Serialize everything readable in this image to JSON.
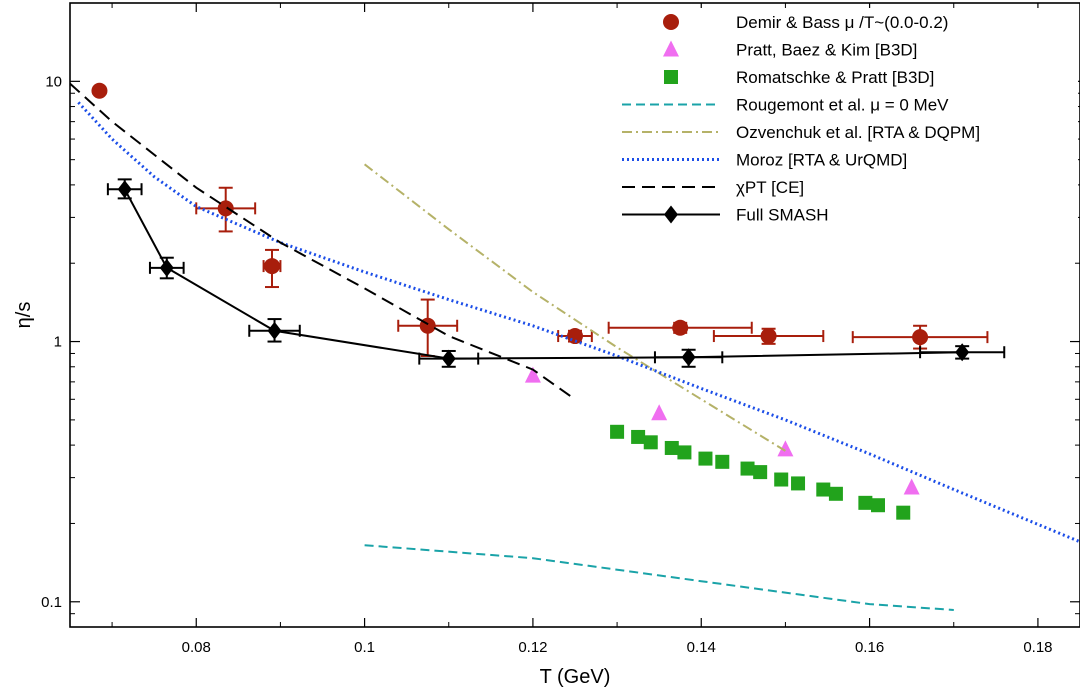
{
  "chart_data": {
    "type": "scatter",
    "xlabel": "T (GeV)",
    "ylabel": "η/s",
    "xlim": [
      0.065,
      0.185
    ],
    "ylim": [
      0.08,
      20
    ],
    "yscale": "log",
    "xticks": [
      "0.08",
      "0.1",
      "0.12",
      "0.14",
      "0.16",
      "0.18"
    ],
    "xtick_values": [
      0.08,
      0.1,
      0.12,
      0.14,
      0.16,
      0.18
    ],
    "yticks": [
      "0.1",
      "1",
      "10"
    ],
    "ytick_values": [
      0.1,
      1,
      10
    ],
    "legend_position": "top-right",
    "series": [
      {
        "name": "Demir & Bass  μ  /T~(0.0-0.2)",
        "kind": "markers",
        "marker": "circle",
        "color": "#a81e0c",
        "errorbars": true,
        "points": [
          {
            "x": 0.0685,
            "y": 9.2
          },
          {
            "x": 0.0835,
            "y": 3.25,
            "xerr": 0.0035,
            "ylo": 2.65,
            "yhi": 3.9
          },
          {
            "x": 0.089,
            "y": 1.95,
            "xerr": 0.001,
            "ylo": 1.62,
            "yhi": 2.25
          },
          {
            "x": 0.1075,
            "y": 1.15,
            "xerr": 0.0035,
            "ylo": 0.88,
            "yhi": 1.45
          },
          {
            "x": 0.125,
            "y": 1.05,
            "xerr": 0.002,
            "ylo": 1.0,
            "yhi": 1.1
          },
          {
            "x": 0.1375,
            "y": 1.13,
            "xerr": 0.0085,
            "ylo": 1.08,
            "yhi": 1.18
          },
          {
            "x": 0.148,
            "y": 1.05,
            "xerr": 0.0065,
            "ylo": 0.98,
            "yhi": 1.12
          },
          {
            "x": 0.166,
            "y": 1.04,
            "xerr": 0.008,
            "ylo": 0.94,
            "yhi": 1.15
          }
        ]
      },
      {
        "name": "Pratt, Baez & Kim [B3D]",
        "kind": "markers",
        "marker": "triangle",
        "color": "#f06ef0",
        "points": [
          {
            "x": 0.12,
            "y": 0.74
          },
          {
            "x": 0.135,
            "y": 0.53
          },
          {
            "x": 0.15,
            "y": 0.385
          },
          {
            "x": 0.165,
            "y": 0.275
          }
        ]
      },
      {
        "name": "Romatschke & Pratt [B3D]",
        "kind": "markers",
        "marker": "square",
        "color": "#22a31c",
        "points": [
          {
            "x": 0.13,
            "y": 0.45
          },
          {
            "x": 0.1325,
            "y": 0.43
          },
          {
            "x": 0.134,
            "y": 0.41
          },
          {
            "x": 0.1365,
            "y": 0.39
          },
          {
            "x": 0.138,
            "y": 0.375
          },
          {
            "x": 0.1405,
            "y": 0.355
          },
          {
            "x": 0.1425,
            "y": 0.345
          },
          {
            "x": 0.1455,
            "y": 0.325
          },
          {
            "x": 0.147,
            "y": 0.315
          },
          {
            "x": 0.1495,
            "y": 0.295
          },
          {
            "x": 0.1515,
            "y": 0.285
          },
          {
            "x": 0.1545,
            "y": 0.27
          },
          {
            "x": 0.156,
            "y": 0.26
          },
          {
            "x": 0.1595,
            "y": 0.24
          },
          {
            "x": 0.161,
            "y": 0.235
          },
          {
            "x": 0.164,
            "y": 0.22
          }
        ]
      },
      {
        "name": "Rougemont et al. μ  = 0 MeV",
        "kind": "line",
        "dash": "dashed",
        "color": "#1aa3a8",
        "points": [
          {
            "x": 0.1,
            "y": 0.165
          },
          {
            "x": 0.12,
            "y": 0.147
          },
          {
            "x": 0.14,
            "y": 0.12
          },
          {
            "x": 0.16,
            "y": 0.098
          },
          {
            "x": 0.17,
            "y": 0.093
          }
        ]
      },
      {
        "name": "Ozvenchuk et al. [RTA & DQPM]",
        "kind": "line",
        "dash": "dashdot",
        "color": "#b5b268",
        "points": [
          {
            "x": 0.1,
            "y": 4.8
          },
          {
            "x": 0.11,
            "y": 2.7
          },
          {
            "x": 0.12,
            "y": 1.55
          },
          {
            "x": 0.13,
            "y": 0.95
          },
          {
            "x": 0.14,
            "y": 0.6
          },
          {
            "x": 0.15,
            "y": 0.38
          }
        ]
      },
      {
        "name": "Moroz [RTA & UrQMD]",
        "kind": "line",
        "dash": "dotted",
        "color": "#1c4ee8",
        "points": [
          {
            "x": 0.066,
            "y": 8.3
          },
          {
            "x": 0.07,
            "y": 6.0
          },
          {
            "x": 0.075,
            "y": 4.3
          },
          {
            "x": 0.08,
            "y": 3.3
          },
          {
            "x": 0.09,
            "y": 2.4
          },
          {
            "x": 0.1,
            "y": 1.85
          },
          {
            "x": 0.11,
            "y": 1.45
          },
          {
            "x": 0.12,
            "y": 1.15
          },
          {
            "x": 0.13,
            "y": 0.88
          },
          {
            "x": 0.14,
            "y": 0.66
          },
          {
            "x": 0.15,
            "y": 0.5
          },
          {
            "x": 0.16,
            "y": 0.37
          },
          {
            "x": 0.17,
            "y": 0.27
          },
          {
            "x": 0.185,
            "y": 0.17
          }
        ]
      },
      {
        "name": "χPT [CE]",
        "kind": "line",
        "dash": "longdash",
        "color": "#000000",
        "points": [
          {
            "x": 0.065,
            "y": 9.8
          },
          {
            "x": 0.07,
            "y": 7.0
          },
          {
            "x": 0.08,
            "y": 3.9
          },
          {
            "x": 0.09,
            "y": 2.4
          },
          {
            "x": 0.1,
            "y": 1.6
          },
          {
            "x": 0.11,
            "y": 1.05
          },
          {
            "x": 0.12,
            "y": 0.78
          },
          {
            "x": 0.125,
            "y": 0.6
          }
        ]
      },
      {
        "name": "Full SMASH",
        "kind": "line+markers",
        "marker": "diamond",
        "color": "#000000",
        "errorbars": true,
        "points": [
          {
            "x": 0.0715,
            "y": 3.85,
            "xerr": 0.002,
            "ylo": 3.55,
            "yhi": 4.2
          },
          {
            "x": 0.0765,
            "y": 1.92,
            "xerr": 0.002,
            "ylo": 1.75,
            "yhi": 2.1
          },
          {
            "x": 0.0893,
            "y": 1.1,
            "xerr": 0.003,
            "ylo": 1.0,
            "yhi": 1.22
          },
          {
            "x": 0.11,
            "y": 0.86,
            "xerr": 0.0035,
            "ylo": 0.8,
            "yhi": 0.92
          },
          {
            "x": 0.1385,
            "y": 0.87,
            "xerr": 0.004,
            "ylo": 0.8,
            "yhi": 0.93
          },
          {
            "x": 0.171,
            "y": 0.91,
            "xerr": 0.005,
            "ylo": 0.86,
            "yhi": 0.96
          }
        ]
      }
    ]
  }
}
